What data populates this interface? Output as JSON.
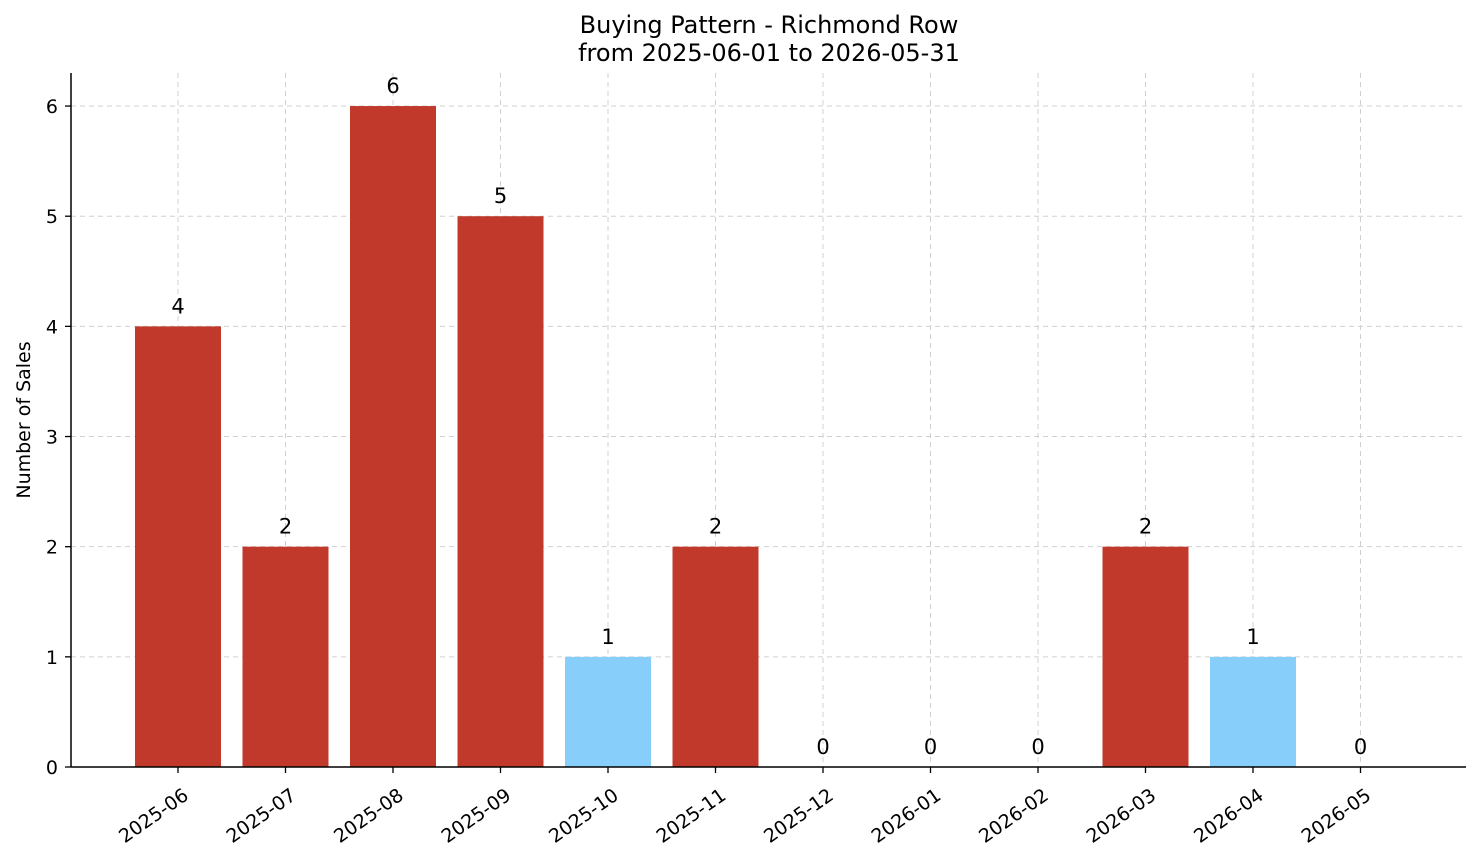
{
  "chart_data": {
    "type": "bar",
    "title": "Buying Pattern - Richmond Row",
    "subtitle": "from 2025-06-01 to 2026-05-31",
    "xlabel": "",
    "ylabel": "Number of Sales",
    "categories": [
      "2025-06",
      "2025-07",
      "2025-08",
      "2025-09",
      "2025-10",
      "2025-11",
      "2025-12",
      "2026-01",
      "2026-02",
      "2026-03",
      "2026-04",
      "2026-05"
    ],
    "values": [
      4,
      2,
      6,
      5,
      1,
      2,
      0,
      0,
      0,
      2,
      1,
      0
    ],
    "bar_colors": [
      "#c0392b",
      "#c0392b",
      "#c0392b",
      "#c0392b",
      "#87cefa",
      "#c0392b",
      "#c0392b",
      "#c0392b",
      "#c0392b",
      "#c0392b",
      "#87cefa",
      "#c0392b"
    ],
    "yticks": [
      "0",
      "1",
      "2",
      "3",
      "4",
      "5",
      "6"
    ],
    "ylim": [
      0,
      6.3
    ],
    "grid": true,
    "legend": "none",
    "colors": {
      "high": "#c0392b",
      "low": "#87cefa"
    }
  }
}
